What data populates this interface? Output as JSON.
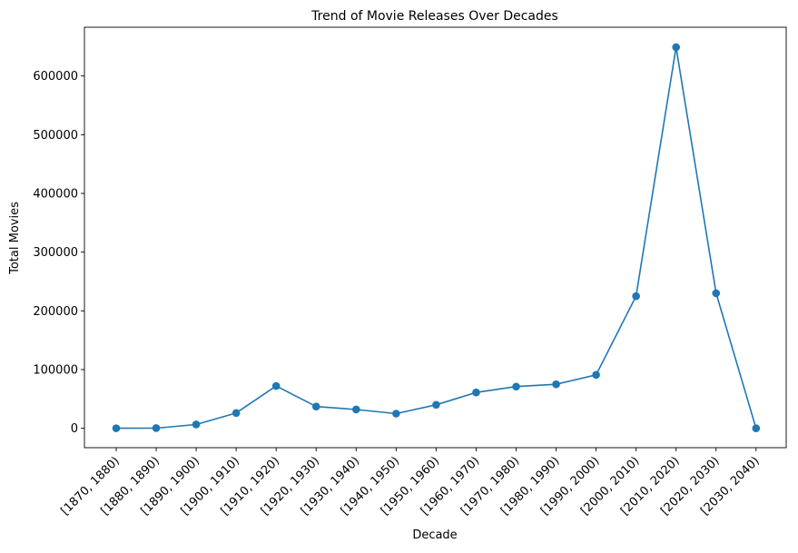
{
  "chart_data": {
    "type": "line",
    "title": "Trend of Movie Releases Over Decades",
    "xlabel": "Decade",
    "ylabel": "Total Movies",
    "categories": [
      "[1870, 1880)",
      "[1880, 1890)",
      "[1890, 1900)",
      "[1900, 1910)",
      "[1910, 1920)",
      "[1920, 1930)",
      "[1930, 1940)",
      "[1940, 1950)",
      "[1950, 1960)",
      "[1960, 1970)",
      "[1970, 1980)",
      "[1980, 1990)",
      "[1990, 2000)",
      "[2000, 2010)",
      "[2010, 2020)",
      "[2020, 2030)",
      "[2030, 2040)"
    ],
    "values": [
      50,
      300,
      6500,
      26000,
      72000,
      37000,
      32000,
      25000,
      40000,
      61000,
      71000,
      75000,
      91000,
      225000,
      649000,
      230000,
      0
    ],
    "yticks": [
      0,
      100000,
      200000,
      300000,
      400000,
      500000,
      600000
    ],
    "ylim": [
      -33000,
      683000
    ],
    "grid": false,
    "legend": "none",
    "colors": {
      "line": "#1f77b4",
      "marker": "#1f77b4",
      "axes": "#000000"
    }
  }
}
